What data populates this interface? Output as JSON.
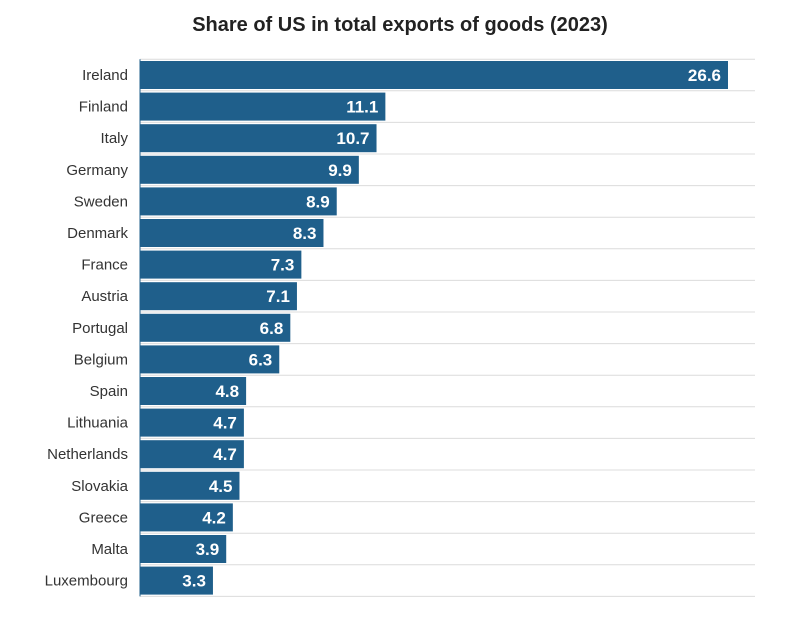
{
  "chart_data": {
    "type": "bar",
    "orientation": "horizontal",
    "title": "Share of US in total exports of goods (2023)",
    "xlabel": "",
    "ylabel": "",
    "xlim": [
      0,
      28
    ],
    "grid": true,
    "categories": [
      "Ireland",
      "Finland",
      "Italy",
      "Germany",
      "Sweden",
      "Denmark",
      "France",
      "Austria",
      "Portugal",
      "Belgium",
      "Spain",
      "Lithuania",
      "Netherlands",
      "Slovakia",
      "Greece",
      "Malta",
      "Luxembourg"
    ],
    "values": [
      26.6,
      11.1,
      10.7,
      9.9,
      8.9,
      8.3,
      7.3,
      7.1,
      6.8,
      6.3,
      4.8,
      4.7,
      4.7,
      4.5,
      4.2,
      3.9,
      3.3
    ],
    "data_labels": [
      "26.6",
      "11.1",
      "10.7",
      "9.9",
      "8.9",
      "8.3",
      "7.3",
      "7.1",
      "6.8",
      "6.3",
      "4.8",
      "4.7",
      "4.7",
      "4.5",
      "4.2",
      "3.9",
      "3.3"
    ],
    "colors": {
      "bar": "#1f5f8b",
      "gridline": "#dcdcdc",
      "category_text": "#333333",
      "value_text": "#ffffff",
      "title_text": "#222222"
    }
  }
}
